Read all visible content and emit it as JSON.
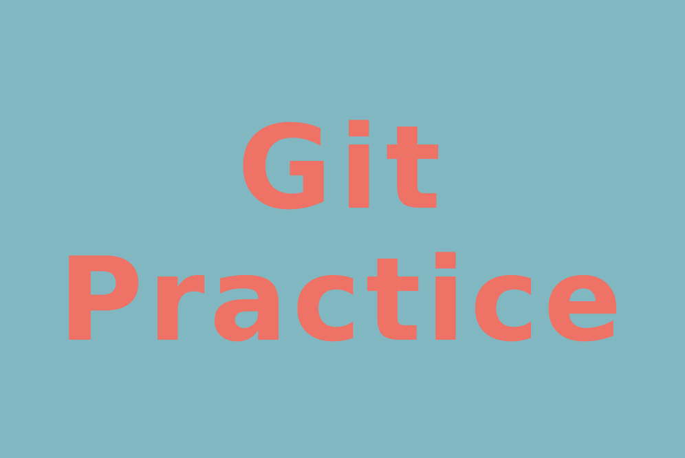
{
  "title": {
    "line1": "Git",
    "line2": "Practice"
  },
  "colors": {
    "background": "#80b7c1",
    "text": "#ee7265"
  }
}
